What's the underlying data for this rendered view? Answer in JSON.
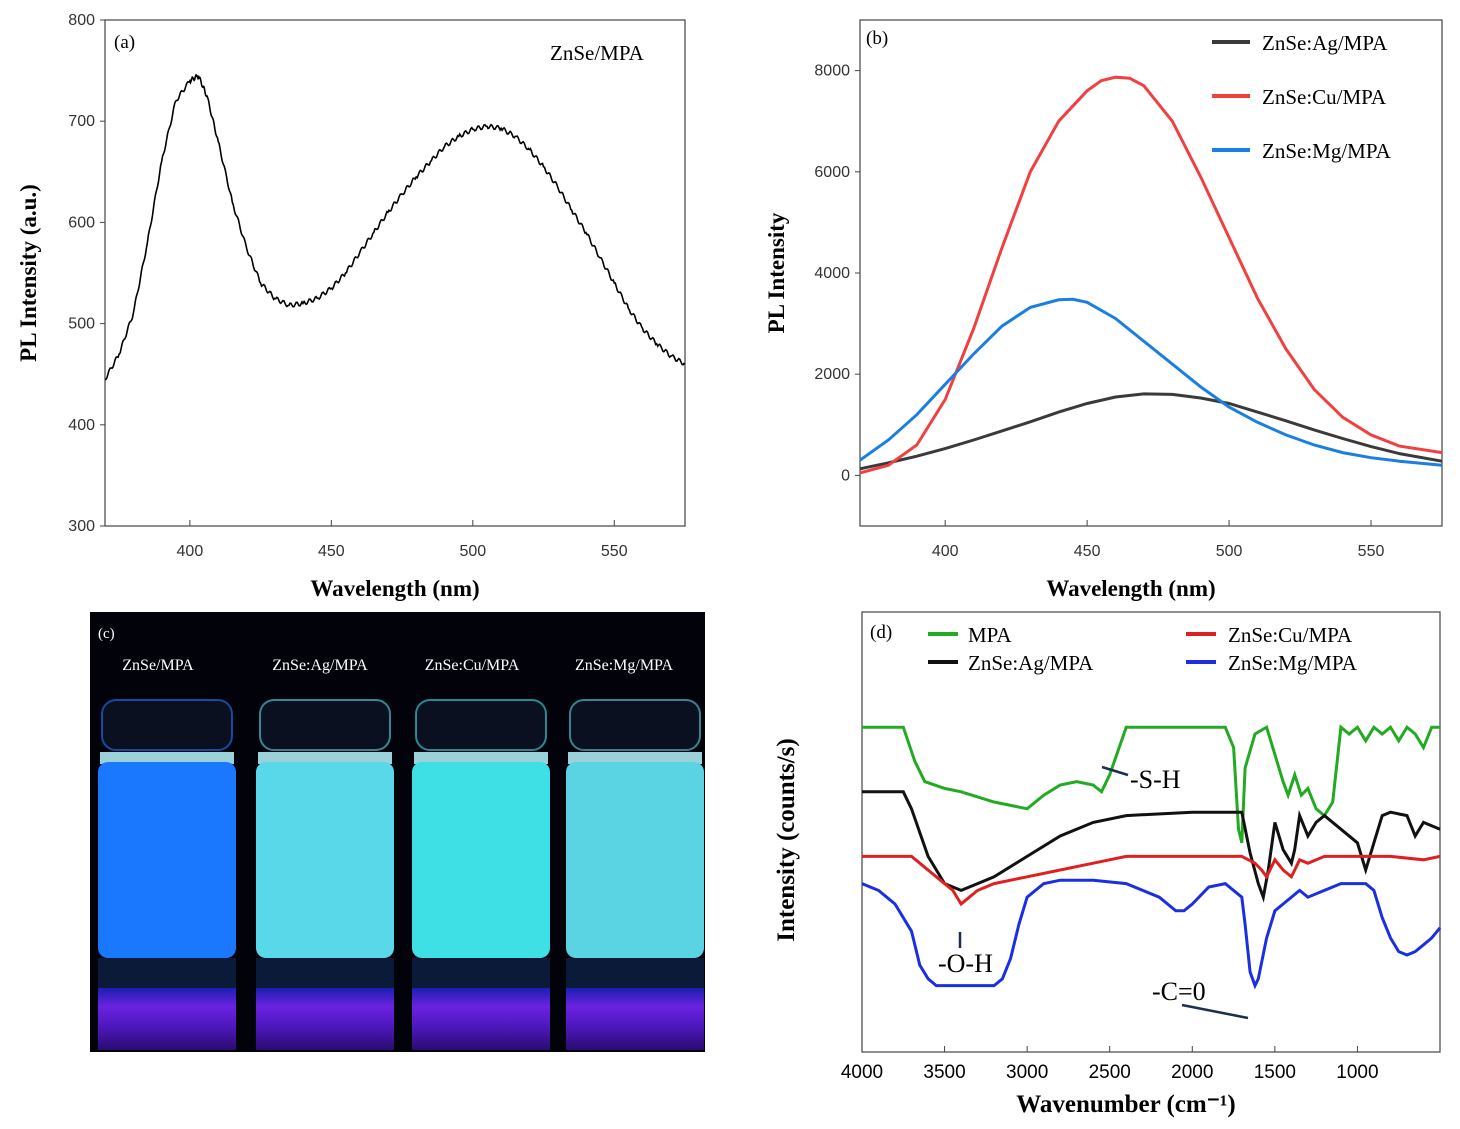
{
  "chart_data": [
    {
      "id": "a",
      "type": "line",
      "panel_label": "(a)",
      "title": "ZnSe/MPA",
      "xlabel": "Wavelength (nm)",
      "ylabel": "PL Intensity (a.u.)",
      "xlim": [
        370,
        575
      ],
      "ylim": [
        300,
        800
      ],
      "xticks": [
        400,
        450,
        500,
        550
      ],
      "yticks": [
        300,
        400,
        500,
        600,
        700,
        800
      ],
      "series": [
        {
          "name": "ZnSe/MPA",
          "color": "#000000",
          "x": [
            370,
            375,
            380,
            385,
            390,
            395,
            400,
            403,
            406,
            410,
            415,
            420,
            425,
            430,
            435,
            440,
            445,
            450,
            455,
            460,
            465,
            470,
            475,
            480,
            485,
            490,
            495,
            500,
            505,
            510,
            515,
            520,
            525,
            530,
            535,
            540,
            545,
            550,
            555,
            560,
            565,
            570,
            575
          ],
          "y": [
            445,
            470,
            510,
            580,
            660,
            720,
            740,
            745,
            725,
            680,
            620,
            575,
            540,
            525,
            518,
            520,
            525,
            535,
            550,
            570,
            590,
            610,
            628,
            645,
            660,
            675,
            685,
            692,
            695,
            693,
            685,
            672,
            655,
            635,
            612,
            590,
            565,
            540,
            515,
            495,
            480,
            468,
            460
          ]
        }
      ]
    },
    {
      "id": "b",
      "type": "line",
      "panel_label": "(b)",
      "xlabel": "Wavelength (nm)",
      "ylabel": "PL Intensity",
      "xlim": [
        370,
        575
      ],
      "ylim": [
        -1000,
        9000
      ],
      "xticks": [
        400,
        450,
        500,
        550
      ],
      "yticks": [
        0,
        2000,
        4000,
        6000,
        8000
      ],
      "legend": "top-right",
      "series": [
        {
          "name": "ZnSe:Ag/MPA",
          "color": "#3a3a3a",
          "x": [
            370,
            380,
            390,
            400,
            410,
            420,
            430,
            440,
            450,
            460,
            470,
            480,
            490,
            500,
            510,
            520,
            530,
            540,
            550,
            560,
            575
          ],
          "y": [
            130,
            250,
            380,
            530,
            700,
            880,
            1060,
            1250,
            1420,
            1550,
            1610,
            1600,
            1530,
            1420,
            1250,
            1080,
            900,
            730,
            570,
            430,
            280
          ]
        },
        {
          "name": "ZnSe:Cu/MPA",
          "color": "#f04040",
          "x": [
            370,
            380,
            390,
            400,
            410,
            420,
            430,
            440,
            450,
            455,
            460,
            465,
            470,
            480,
            490,
            500,
            510,
            520,
            530,
            540,
            550,
            560,
            575
          ],
          "y": [
            50,
            200,
            600,
            1500,
            2900,
            4500,
            6000,
            7000,
            7600,
            7800,
            7870,
            7850,
            7700,
            7000,
            5900,
            4700,
            3500,
            2500,
            1700,
            1150,
            800,
            580,
            450
          ]
        },
        {
          "name": "ZnSe:Mg/MPA",
          "color": "#1a7fe0",
          "x": [
            370,
            380,
            390,
            400,
            410,
            420,
            430,
            440,
            445,
            450,
            460,
            470,
            480,
            490,
            500,
            510,
            520,
            530,
            540,
            550,
            560,
            575
          ],
          "y": [
            300,
            700,
            1200,
            1800,
            2400,
            2950,
            3320,
            3470,
            3480,
            3420,
            3100,
            2650,
            2200,
            1750,
            1350,
            1050,
            800,
            600,
            450,
            350,
            280,
            200
          ]
        }
      ]
    },
    {
      "id": "d",
      "type": "line",
      "panel_label": "(d)",
      "xlabel": "Wavenumber (cm⁻¹)",
      "ylabel": "Intensity (counts/s)",
      "xlim": [
        4000,
        500
      ],
      "ylim": [
        0,
        100
      ],
      "xticks": [
        4000,
        3500,
        3000,
        2500,
        2000,
        1500,
        1000
      ],
      "legend": "top",
      "annotations": [
        "-S-H",
        "-O-H",
        "-C=0"
      ],
      "series": [
        {
          "name": "MPA",
          "color": "#22aa22",
          "x": [
            4000,
            3750,
            3680,
            3620,
            3500,
            3400,
            3200,
            3000,
            2900,
            2800,
            2700,
            2600,
            2550,
            2500,
            2400,
            2000,
            1800,
            1750,
            1720,
            1700,
            1680,
            1620,
            1550,
            1450,
            1420,
            1380,
            1340,
            1300,
            1250,
            1200,
            1150,
            1100,
            1050,
            1000,
            950,
            900,
            850,
            800,
            750,
            700,
            650,
            600,
            550,
            500
          ],
          "y": [
            92,
            92,
            82,
            76,
            74,
            73,
            70,
            68,
            72,
            75,
            76,
            75,
            73,
            78,
            92,
            92,
            92,
            86,
            62,
            58,
            80,
            90,
            92,
            76,
            72,
            78,
            72,
            74,
            68,
            66,
            70,
            92,
            90,
            92,
            88,
            92,
            90,
            92,
            88,
            92,
            90,
            86,
            92,
            92
          ]
        },
        {
          "name": "ZnSe:Ag/MPA",
          "color": "#111111",
          "x": [
            4000,
            3750,
            3700,
            3600,
            3500,
            3400,
            3300,
            3200,
            3000,
            2800,
            2600,
            2400,
            2000,
            1700,
            1650,
            1600,
            1570,
            1540,
            1500,
            1450,
            1400,
            1380,
            1350,
            1300,
            1250,
            1200,
            1100,
            1000,
            950,
            900,
            850,
            800,
            700,
            650,
            600,
            500
          ],
          "y": [
            73,
            73,
            68,
            54,
            46,
            44,
            46,
            48,
            54,
            60,
            64,
            66,
            67,
            67,
            55,
            46,
            42,
            50,
            64,
            56,
            52,
            56,
            66,
            60,
            64,
            66,
            62,
            58,
            50,
            58,
            66,
            67,
            66,
            60,
            64,
            62
          ]
        },
        {
          "name": "ZnSe:Cu/MPA",
          "color": "#e02020",
          "x": [
            4000,
            3700,
            3650,
            3550,
            3450,
            3400,
            3350,
            3300,
            3200,
            3000,
            2800,
            2600,
            2400,
            2000,
            1700,
            1620,
            1580,
            1550,
            1500,
            1450,
            1400,
            1380,
            1350,
            1300,
            1200,
            1000,
            800,
            600,
            500
          ],
          "y": [
            54,
            54,
            52,
            48,
            44,
            40,
            42,
            44,
            46,
            48,
            50,
            52,
            54,
            54,
            54,
            52,
            50,
            48,
            53,
            50,
            48,
            50,
            53,
            52,
            54,
            54,
            54,
            53,
            54
          ]
        },
        {
          "name": "ZnSe:Mg/MPA",
          "color": "#1a30e0",
          "x": [
            4000,
            3900,
            3800,
            3700,
            3650,
            3600,
            3550,
            3400,
            3300,
            3200,
            3150,
            3100,
            3050,
            3000,
            2900,
            2800,
            2600,
            2400,
            2200,
            2100,
            2050,
            2000,
            1900,
            1800,
            1700,
            1680,
            1650,
            1620,
            1600,
            1550,
            1500,
            1450,
            1400,
            1350,
            1300,
            1200,
            1100,
            1000,
            950,
            900,
            850,
            800,
            750,
            700,
            650,
            600,
            550,
            500
          ],
          "y": [
            46,
            44,
            40,
            32,
            22,
            18,
            16,
            16,
            16,
            16,
            18,
            24,
            34,
            42,
            46,
            47,
            47,
            46,
            42,
            38,
            38,
            40,
            45,
            46,
            42,
            34,
            20,
            16,
            18,
            30,
            38,
            40,
            42,
            44,
            42,
            44,
            46,
            46,
            46,
            44,
            36,
            30,
            26,
            25,
            26,
            28,
            30,
            33
          ]
        }
      ]
    }
  ],
  "photo": {
    "panel_label": "(c)",
    "vials": [
      {
        "label": "ZnSe/MPA",
        "color": "#1a78ff"
      },
      {
        "label": "ZnSe:Ag/MPA",
        "color": "#58d8e8"
      },
      {
        "label": "ZnSe:Cu/MPA",
        "color": "#3ee0e6"
      },
      {
        "label": "ZnSe:Mg/MPA",
        "color": "#5ad4e2"
      }
    ]
  }
}
